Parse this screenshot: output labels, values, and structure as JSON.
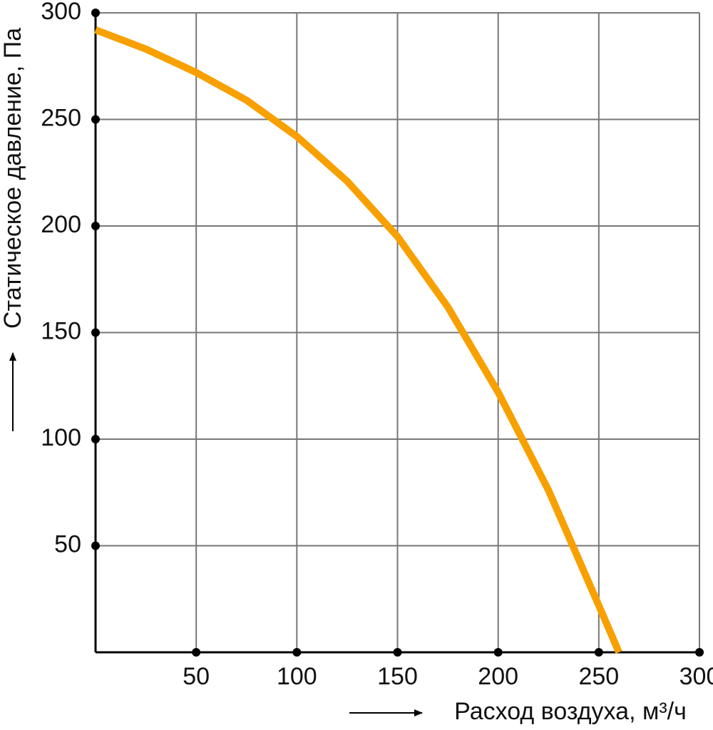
{
  "chart_data": {
    "type": "line",
    "x_label": "Расход воздуха, м³/ч",
    "y_label": "Статическое давление, Па",
    "x": [
      0,
      25,
      50,
      75,
      100,
      125,
      150,
      175,
      200,
      225,
      250,
      260
    ],
    "series": [
      {
        "name": "Статическое давление",
        "color": "#f7a000",
        "values": [
          292,
          283,
          272,
          259,
          242,
          221,
          195,
          162,
          122,
          76,
          22,
          0
        ]
      }
    ],
    "xlim": [
      0,
      300
    ],
    "xticks": [
      50,
      100,
      150,
      200,
      250,
      300
    ],
    "ylim": [
      0,
      300
    ],
    "yticks": [
      50,
      100,
      150,
      200,
      250,
      300
    ],
    "grid": true
  }
}
